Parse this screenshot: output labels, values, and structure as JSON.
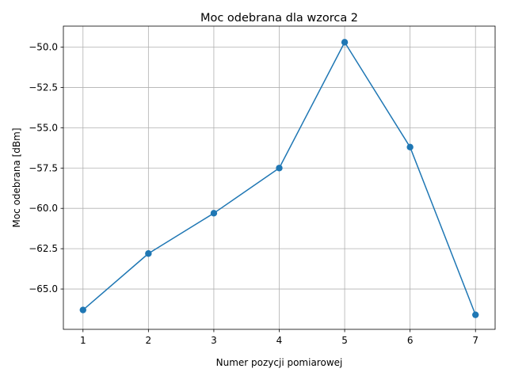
{
  "chart_data": {
    "type": "line",
    "title": "Moc odebrana dla wzorca 2",
    "xlabel": "Numer pozycji pomiarowej",
    "ylabel": "Moc odebrana [dBm]",
    "x": [
      1,
      2,
      3,
      4,
      5,
      6,
      7
    ],
    "series": [
      {
        "values": [
          -66.3,
          -62.8,
          -60.3,
          -57.5,
          -49.7,
          -56.2,
          -66.6
        ],
        "color": "#1f77b4",
        "marker": "circle"
      }
    ],
    "xlim": [
      0.7,
      7.3
    ],
    "ylim": [
      -67.5,
      -48.7
    ],
    "xticks": [
      1,
      2,
      3,
      4,
      5,
      6,
      7
    ],
    "xtick_labels": [
      "1",
      "2",
      "3",
      "4",
      "5",
      "6",
      "7"
    ],
    "yticks": [
      -65.0,
      -62.5,
      -60.0,
      -57.5,
      -55.0,
      -52.5,
      -50.0
    ],
    "ytick_labels": [
      "−65.0",
      "−62.5",
      "−60.0",
      "−57.5",
      "−55.0",
      "−52.5",
      "−50.0"
    ],
    "grid": true,
    "grid_color": "#b0b0b0",
    "legend": "none"
  }
}
